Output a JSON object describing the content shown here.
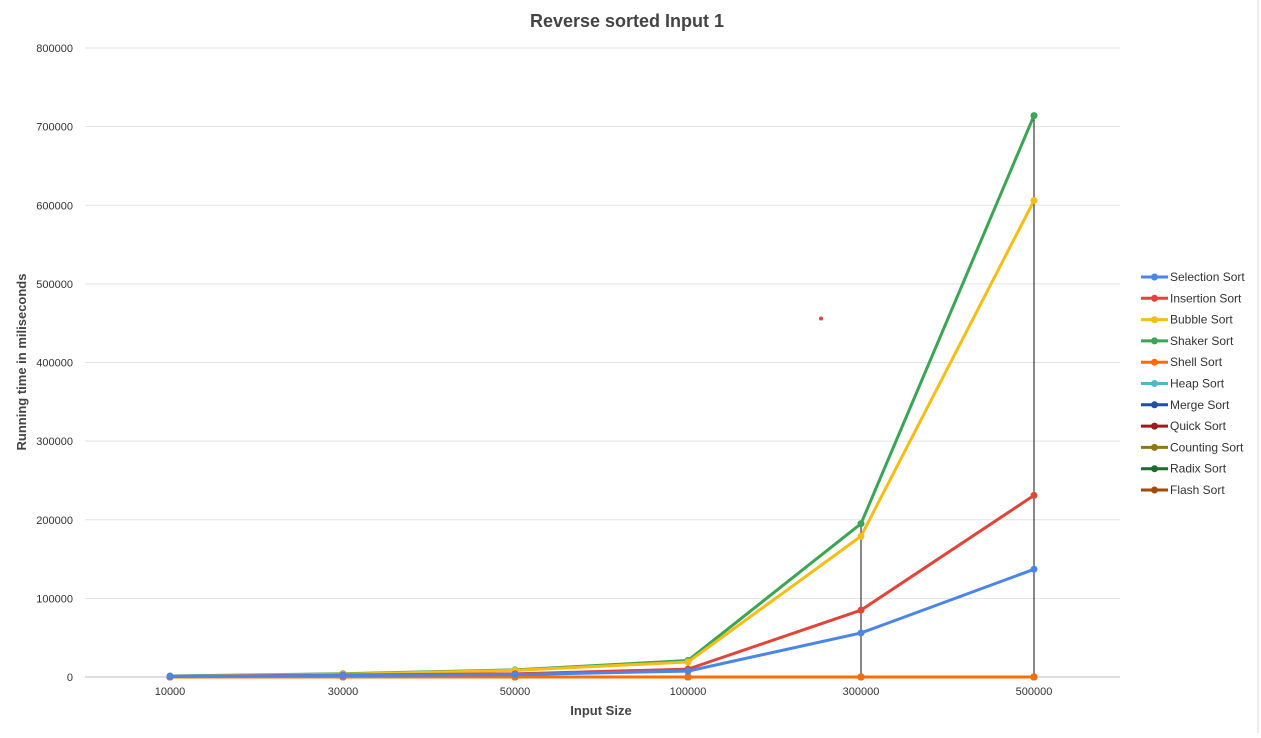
{
  "chart_data": {
    "type": "line",
    "title": "Reverse sorted Input 1",
    "xlabel": "Input Size",
    "ylabel": "Running time in miliseconds",
    "categories": [
      "10000",
      "30000",
      "50000",
      "100000",
      "300000",
      "500000"
    ],
    "ylim": [
      0,
      800000
    ],
    "yticks": [
      "0",
      "100000",
      "200000",
      "300000",
      "400000",
      "500000",
      "600000",
      "700000",
      "800000"
    ],
    "grid": true,
    "legend_position": "right",
    "series": [
      {
        "name": "Selection Sort",
        "color": "#4a86e8",
        "values": [
          900,
          1800,
          3000,
          7500,
          56000,
          137000
        ]
      },
      {
        "name": "Insertion Sort",
        "color": "#e0453a",
        "values": [
          800,
          2500,
          4000,
          10000,
          85000,
          231000
        ]
      },
      {
        "name": "Bubble Sort",
        "color": "#f6bd16",
        "values": [
          1000,
          3500,
          8500,
          19000,
          179000,
          606000
        ]
      },
      {
        "name": "Shaker Sort",
        "color": "#3aa655",
        "values": [
          1200,
          4200,
          9000,
          21000,
          195000,
          714000
        ]
      },
      {
        "name": "Shell Sort",
        "color": "#ff6d00",
        "values": [
          0,
          0,
          0,
          0,
          0,
          0
        ]
      },
      {
        "name": "Heap Sort",
        "color": "#46bdc6",
        "values": [
          0,
          0,
          0,
          0,
          0,
          0
        ]
      },
      {
        "name": "Merge Sort",
        "color": "#1e4fa3",
        "values": [
          0,
          0,
          0,
          0,
          0,
          0
        ]
      },
      {
        "name": "Quick Sort",
        "color": "#9c1c1c",
        "values": [
          0,
          0,
          0,
          0,
          0,
          0
        ]
      },
      {
        "name": "Counting Sort",
        "color": "#8c7a10",
        "values": [
          0,
          0,
          0,
          0,
          0,
          0
        ]
      },
      {
        "name": "Radix Sort",
        "color": "#1e6b2e",
        "values": [
          0,
          0,
          0,
          0,
          0,
          0
        ]
      },
      {
        "name": "Flash Sort",
        "color": "#a34a0a",
        "values": [
          0,
          0,
          0,
          0,
          0,
          0
        ]
      }
    ],
    "annotation_point": {
      "x": "approx 200000",
      "y": 456000,
      "color": "#e0453a"
    }
  }
}
